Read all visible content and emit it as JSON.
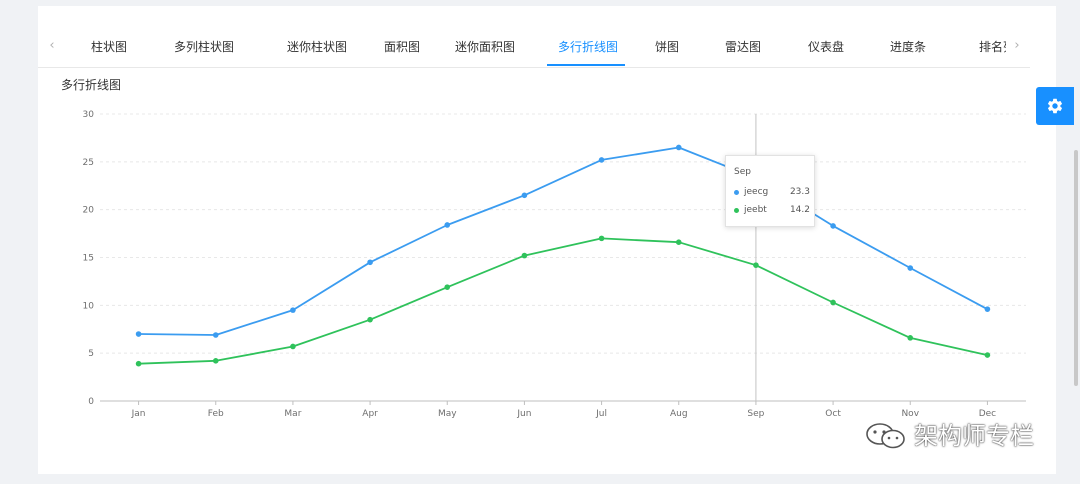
{
  "tabs": {
    "items": [
      "柱状图",
      "多列柱状图",
      "迷你柱状图",
      "面积图",
      "迷你面积图",
      "多行折线图",
      "饼图",
      "雷达图",
      "仪表盘",
      "进度条",
      "排名列"
    ],
    "active_index": 5
  },
  "icons": {
    "tab_prev": "chevron-left-icon",
    "tab_next": "chevron-right-icon",
    "settings": "gear-icon",
    "watermark": "wechat-icon"
  },
  "colors": {
    "accent": "#1890ff",
    "jeecg": "#3b9cf0",
    "jeebt": "#2fc25b"
  },
  "chart_data": {
    "type": "line",
    "title": "多行折线图",
    "categories": [
      "Jan",
      "Feb",
      "Mar",
      "Apr",
      "May",
      "Jun",
      "Jul",
      "Aug",
      "Sep",
      "Oct",
      "Nov",
      "Dec"
    ],
    "series": [
      {
        "name": "jeecg",
        "color": "#3b9cf0",
        "values": [
          7.0,
          6.9,
          9.5,
          14.5,
          18.4,
          21.5,
          25.2,
          26.5,
          23.3,
          18.3,
          13.9,
          9.6
        ]
      },
      {
        "name": "jeebt",
        "color": "#2fc25b",
        "values": [
          3.9,
          4.2,
          5.7,
          8.5,
          11.9,
          15.2,
          17.0,
          16.6,
          14.2,
          10.3,
          6.6,
          4.8
        ]
      }
    ],
    "ylim": [
      0,
      30
    ],
    "yticks": [
      0,
      5,
      10,
      15,
      20,
      25,
      30
    ],
    "grid": true,
    "tooltip": {
      "category": "Sep",
      "rows": [
        {
          "name": "jeecg",
          "value": "23.3"
        },
        {
          "name": "jeebt",
          "value": "14.2"
        }
      ]
    }
  },
  "watermark": {
    "text": "架构师专栏"
  }
}
